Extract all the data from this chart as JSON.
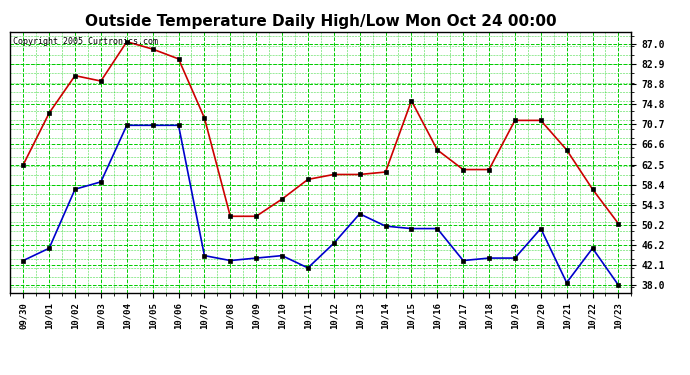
{
  "title": "Outside Temperature Daily High/Low Mon Oct 24 00:00",
  "copyright": "Copyright 2005 Curtronics.com",
  "x_labels": [
    "09/30",
    "10/01",
    "10/02",
    "10/03",
    "10/04",
    "10/05",
    "10/06",
    "10/07",
    "10/08",
    "10/09",
    "10/10",
    "10/11",
    "10/12",
    "10/13",
    "10/14",
    "10/15",
    "10/16",
    "10/17",
    "10/18",
    "10/19",
    "10/20",
    "10/21",
    "10/22",
    "10/23"
  ],
  "high_values": [
    62.5,
    73.0,
    80.6,
    79.5,
    87.5,
    86.0,
    84.0,
    72.0,
    52.0,
    52.0,
    55.5,
    59.5,
    60.5,
    60.5,
    61.0,
    75.5,
    65.5,
    61.5,
    61.5,
    71.5,
    71.5,
    65.5,
    57.5,
    50.5
  ],
  "low_values": [
    43.0,
    45.5,
    57.5,
    59.0,
    70.5,
    70.5,
    70.5,
    44.0,
    43.0,
    43.5,
    44.0,
    41.5,
    46.5,
    52.5,
    50.0,
    49.5,
    49.5,
    43.0,
    43.5,
    43.5,
    49.5,
    38.5,
    45.5,
    38.0
  ],
  "high_color": "#cc0000",
  "low_color": "#0000cc",
  "background_color": "#ffffff",
  "grid_color": "#00cc00",
  "title_fontsize": 11,
  "y_ticks": [
    38.0,
    42.1,
    46.2,
    50.2,
    54.3,
    58.4,
    62.5,
    66.6,
    70.7,
    74.8,
    78.8,
    82.9,
    87.0
  ],
  "ylim": [
    36.5,
    89.5
  ],
  "markersize": 3,
  "linewidth": 1.2
}
